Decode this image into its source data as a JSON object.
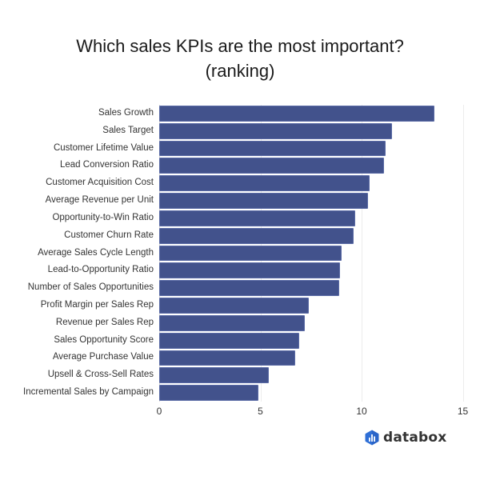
{
  "chart_data": {
    "type": "bar",
    "orientation": "horizontal",
    "title": "Which sales KPIs are the most important?",
    "subtitle": "(ranking)",
    "xlabel": "",
    "ylabel": "",
    "xlim": [
      0,
      15
    ],
    "x_ticks": [
      "0",
      "5",
      "10",
      "15"
    ],
    "grid": true,
    "legend": null,
    "bar_color": "#42528c",
    "categories": [
      "Sales Growth",
      "Sales Target",
      "Customer Lifetime Value",
      "Lead Conversion Ratio",
      "Customer Acquisition Cost",
      "Average Revenue per Unit",
      "Opportunity-to-Win Ratio",
      "Customer Churn Rate",
      "Average Sales Cycle Length",
      "Lead-to-Opportunity Ratio",
      "Number of Sales Opportunities",
      "Profit Margin per Sales Rep",
      "Revenue per Sales Rep",
      "Sales Opportunity Score",
      "Average Purchase Value",
      "Upsell & Cross-Sell Rates",
      "Incremental Sales by Campaign"
    ],
    "values": [
      13.6,
      11.5,
      11.2,
      11.1,
      10.4,
      10.3,
      9.7,
      9.6,
      9.0,
      8.95,
      8.9,
      7.4,
      7.2,
      6.9,
      6.7,
      5.4,
      4.9
    ]
  },
  "title": {
    "line1": "Which sales KPIs are the most important?",
    "line2": "(ranking)"
  },
  "branding": {
    "logo_text": "databox",
    "logo_color": "#2f6fd6"
  }
}
